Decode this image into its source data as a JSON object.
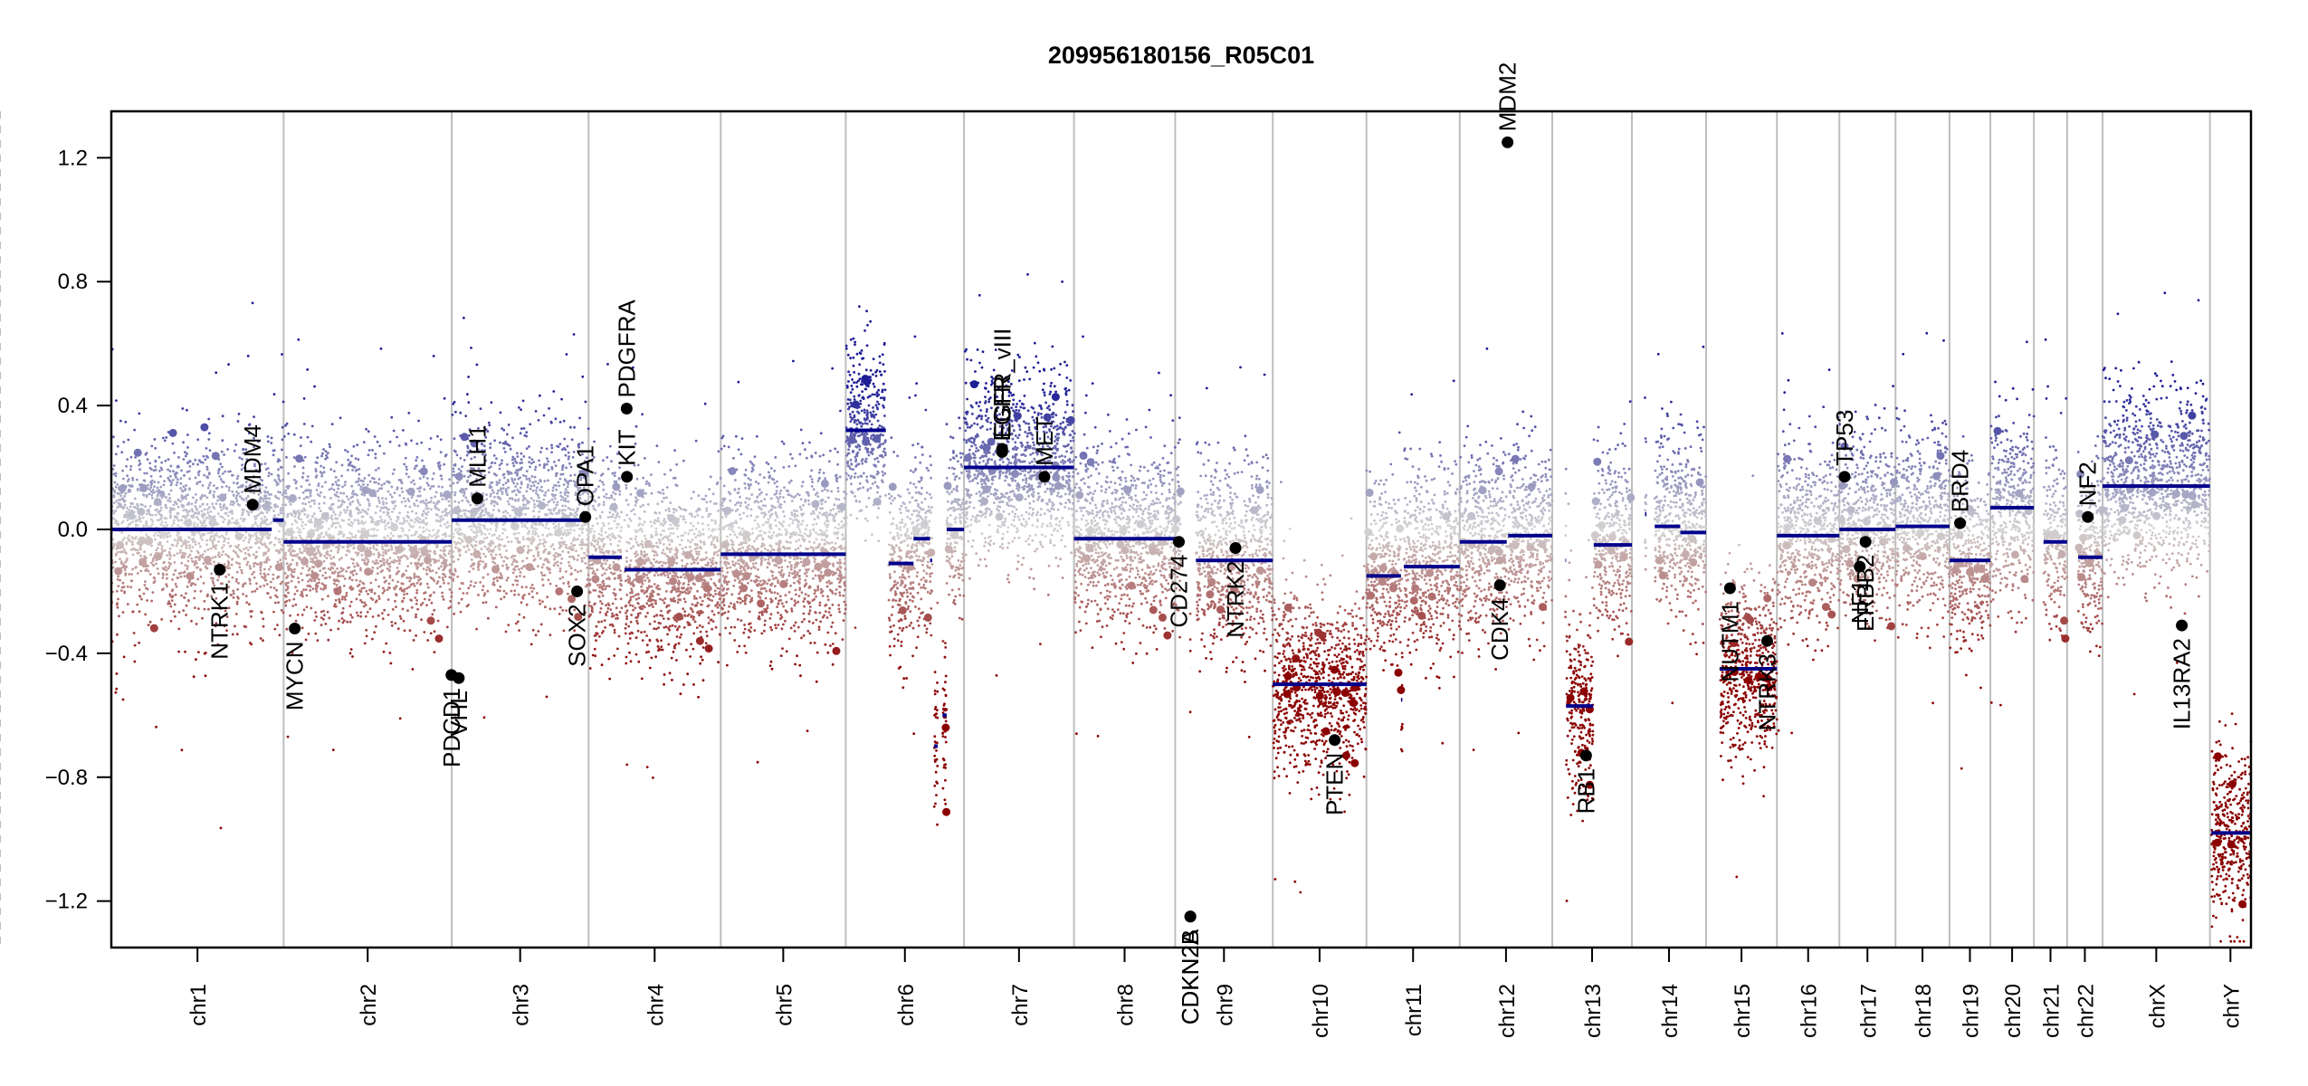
{
  "chart_data": {
    "type": "scatter",
    "title": "209956180156_R05C01",
    "xlabel": "",
    "ylabel": "",
    "ylim": [
      -1.35,
      1.35
    ],
    "yticks": [
      -1.2,
      -0.8,
      -0.4,
      0.0,
      0.4,
      0.8,
      1.2
    ],
    "ytick_labels": [
      "−1.2",
      "−0.8",
      "−0.4",
      "0.0",
      "0.4",
      "0.8",
      "1.2"
    ],
    "grid": false,
    "legend": "none",
    "colors": {
      "segment": "#00008b",
      "gain": "#1e1e96",
      "neutral": "#d3d3d3",
      "loss": "#8b0000",
      "gene_point": "#000000",
      "chrom_boundary": "#bebebe",
      "centromere": "#bebebe"
    },
    "chromosomes": [
      {
        "name": "chr1",
        "length": 249.3,
        "centromere": 125.0
      },
      {
        "name": "chr2",
        "length": 243.2,
        "centromere": 93.3
      },
      {
        "name": "chr3",
        "length": 198.0,
        "centromere": 91.0
      },
      {
        "name": "chr4",
        "length": 191.2,
        "centromere": 50.4
      },
      {
        "name": "chr5",
        "length": 180.9,
        "centromere": 48.4
      },
      {
        "name": "chr6",
        "length": 171.1,
        "centromere": 61.0
      },
      {
        "name": "chr7",
        "length": 159.1,
        "centromere": 59.9
      },
      {
        "name": "chr8",
        "length": 146.4,
        "centromere": 45.6
      },
      {
        "name": "chr9",
        "length": 141.2,
        "centromere": 49.0
      },
      {
        "name": "chr10",
        "length": 135.5,
        "centromere": 40.2
      },
      {
        "name": "chr11",
        "length": 135.0,
        "centromere": 53.7
      },
      {
        "name": "chr12",
        "length": 133.9,
        "centromere": 35.8
      },
      {
        "name": "chr13",
        "length": 115.2,
        "centromere": 17.9
      },
      {
        "name": "chr14",
        "length": 107.3,
        "centromere": 17.6
      },
      {
        "name": "chr15",
        "length": 102.5,
        "centromere": 19.0
      },
      {
        "name": "chr16",
        "length": 90.4,
        "centromere": 36.6
      },
      {
        "name": "chr17",
        "length": 81.2,
        "centromere": 24.0
      },
      {
        "name": "chr18",
        "length": 78.1,
        "centromere": 17.2
      },
      {
        "name": "chr19",
        "length": 59.1,
        "centromere": 26.5
      },
      {
        "name": "chr20",
        "length": 63.0,
        "centromere": 27.5
      },
      {
        "name": "chr21",
        "length": 48.1,
        "centromere": 13.2
      },
      {
        "name": "chr22",
        "length": 51.3,
        "centromere": 14.7
      },
      {
        "name": "chrX",
        "length": 155.3,
        "centromere": 60.6
      },
      {
        "name": "chrY",
        "length": 59.4,
        "centromere": 12.5
      }
    ],
    "segments": [
      {
        "chr": "chr1",
        "start": 0,
        "end": 232,
        "value": 0.0
      },
      {
        "chr": "chr1",
        "start": 234,
        "end": 249.3,
        "value": 0.03
      },
      {
        "chr": "chr2",
        "start": 0,
        "end": 243.2,
        "value": -0.04
      },
      {
        "chr": "chr3",
        "start": 0,
        "end": 198.0,
        "value": 0.03
      },
      {
        "chr": "chr4",
        "start": 0,
        "end": 48,
        "value": -0.09
      },
      {
        "chr": "chr4",
        "start": 52,
        "end": 191.2,
        "value": -0.13
      },
      {
        "chr": "chr5",
        "start": 0,
        "end": 180.9,
        "value": -0.08
      },
      {
        "chr": "chr6",
        "start": 0,
        "end": 58,
        "value": 0.32
      },
      {
        "chr": "chr6",
        "start": 62,
        "end": 98,
        "value": -0.11
      },
      {
        "chr": "chr6",
        "start": 98,
        "end": 122,
        "value": -0.03
      },
      {
        "chr": "chr6",
        "start": 122,
        "end": 125,
        "value": -0.1
      },
      {
        "chr": "chr6",
        "start": 128,
        "end": 133,
        "value": -0.7
      },
      {
        "chr": "chr6",
        "start": 140,
        "end": 146,
        "value": -0.6
      },
      {
        "chr": "chr6",
        "start": 146,
        "end": 171.1,
        "value": 0.0
      },
      {
        "chr": "chr7",
        "start": 0,
        "end": 159.1,
        "value": 0.2
      },
      {
        "chr": "chr8",
        "start": 0,
        "end": 146.4,
        "value": -0.03
      },
      {
        "chr": "chr9",
        "start": 0,
        "end": 8,
        "value": -0.03
      },
      {
        "chr": "chr9",
        "start": 21.9,
        "end": 22.0,
        "value": -0.45
      },
      {
        "chr": "chr9",
        "start": 30,
        "end": 141.2,
        "value": -0.1
      },
      {
        "chr": "chr10",
        "start": 0,
        "end": 135.5,
        "value": -0.5
      },
      {
        "chr": "chr11",
        "start": 0,
        "end": 50,
        "value": -0.15
      },
      {
        "chr": "chr11",
        "start": 50,
        "end": 52,
        "value": -0.55
      },
      {
        "chr": "chr11",
        "start": 54,
        "end": 135.0,
        "value": -0.12
      },
      {
        "chr": "chr12",
        "start": 0,
        "end": 68,
        "value": -0.04
      },
      {
        "chr": "chr12",
        "start": 70,
        "end": 133.9,
        "value": -0.02
      },
      {
        "chr": "chr13",
        "start": 19,
        "end": 20,
        "value": -0.1
      },
      {
        "chr": "chr13",
        "start": 20,
        "end": 59,
        "value": -0.57
      },
      {
        "chr": "chr13",
        "start": 60,
        "end": 115.2,
        "value": -0.05
      },
      {
        "chr": "chr14",
        "start": 19,
        "end": 21,
        "value": 0.05
      },
      {
        "chr": "chr14",
        "start": 33,
        "end": 70,
        "value": 0.01
      },
      {
        "chr": "chr14",
        "start": 70,
        "end": 107.3,
        "value": -0.01
      },
      {
        "chr": "chr15",
        "start": 20,
        "end": 102.5,
        "value": -0.45
      },
      {
        "chr": "chr16",
        "start": 0,
        "end": 90.4,
        "value": -0.02
      },
      {
        "chr": "chr17",
        "start": 0,
        "end": 81.2,
        "value": 0.0
      },
      {
        "chr": "chr18",
        "start": 0,
        "end": 78.1,
        "value": 0.01
      },
      {
        "chr": "chr19",
        "start": 0,
        "end": 59.1,
        "value": -0.1
      },
      {
        "chr": "chr20",
        "start": 0,
        "end": 63.0,
        "value": 0.07
      },
      {
        "chr": "chr21",
        "start": 14,
        "end": 48.1,
        "value": -0.04
      },
      {
        "chr": "chr22",
        "start": 16,
        "end": 51.3,
        "value": -0.09
      },
      {
        "chr": "chrX",
        "start": 0,
        "end": 155.3,
        "value": 0.14
      },
      {
        "chr": "chrY",
        "start": 2,
        "end": 59.4,
        "value": -0.98
      }
    ],
    "genes": [
      {
        "name": "NTRK1",
        "chr": "chr1",
        "pos": 156.8,
        "value": -0.13
      },
      {
        "name": "MDM4",
        "chr": "chr1",
        "pos": 204.5,
        "value": 0.08
      },
      {
        "name": "MYCN",
        "chr": "chr2",
        "pos": 16.1,
        "value": -0.32
      },
      {
        "name": "PDCD1",
        "chr": "chr2",
        "pos": 242.8,
        "value": -0.47
      },
      {
        "name": "VHL",
        "chr": "chr3",
        "pos": 10.2,
        "value": -0.48
      },
      {
        "name": "MLH1",
        "chr": "chr3",
        "pos": 37.0,
        "value": 0.1
      },
      {
        "name": "SOX2",
        "chr": "chr3",
        "pos": 181.4,
        "value": -0.2
      },
      {
        "name": "OPA1",
        "chr": "chr3",
        "pos": 193.3,
        "value": 0.04
      },
      {
        "name": "KIT",
        "chr": "chr4",
        "pos": 55.5,
        "value": 0.17
      },
      {
        "name": "PDGFRA",
        "chr": "chr4",
        "pos": 55.1,
        "value": 0.39
      },
      {
        "name": "EGFR",
        "chr": "chr7",
        "pos": 55.1,
        "value": 0.25
      },
      {
        "name": "EGFR_vIII",
        "chr": "chr7",
        "pos": 55.2,
        "value": 0.26
      },
      {
        "name": "MET",
        "chr": "chr7",
        "pos": 116.3,
        "value": 0.17
      },
      {
        "name": "CD274",
        "chr": "chr9",
        "pos": 5.4,
        "value": -0.04
      },
      {
        "name": "CDKN2A",
        "chr": "chr9",
        "pos": 21.9,
        "value": -1.25
      },
      {
        "name": "CDKN2B",
        "chr": "chr9",
        "pos": 22.0,
        "value": -1.25
      },
      {
        "name": "NTRK2",
        "chr": "chr9",
        "pos": 87.3,
        "value": -0.06
      },
      {
        "name": "PTEN",
        "chr": "chr10",
        "pos": 89.6,
        "value": -0.68
      },
      {
        "name": "CDK4",
        "chr": "chr12",
        "pos": 58.1,
        "value": -0.18
      },
      {
        "name": "MDM2",
        "chr": "chr12",
        "pos": 69.2,
        "value": 1.25
      },
      {
        "name": "RB1",
        "chr": "chr13",
        "pos": 48.9,
        "value": -0.73
      },
      {
        "name": "NUTM1",
        "chr": "chr15",
        "pos": 34.6,
        "value": -0.19
      },
      {
        "name": "NTRK3",
        "chr": "chr15",
        "pos": 88.4,
        "value": -0.36
      },
      {
        "name": "TP53",
        "chr": "chr17",
        "pos": 7.5,
        "value": 0.17
      },
      {
        "name": "NF1",
        "chr": "chr17",
        "pos": 29.5,
        "value": -0.12
      },
      {
        "name": "ERBB2",
        "chr": "chr17",
        "pos": 37.8,
        "value": -0.04
      },
      {
        "name": "BRD4",
        "chr": "chr19",
        "pos": 15.3,
        "value": 0.02
      },
      {
        "name": "NF2",
        "chr": "chr22",
        "pos": 29.9,
        "value": 0.04
      },
      {
        "name": "IL13RA2",
        "chr": "chrX",
        "pos": 114.6,
        "value": -0.31
      }
    ]
  }
}
